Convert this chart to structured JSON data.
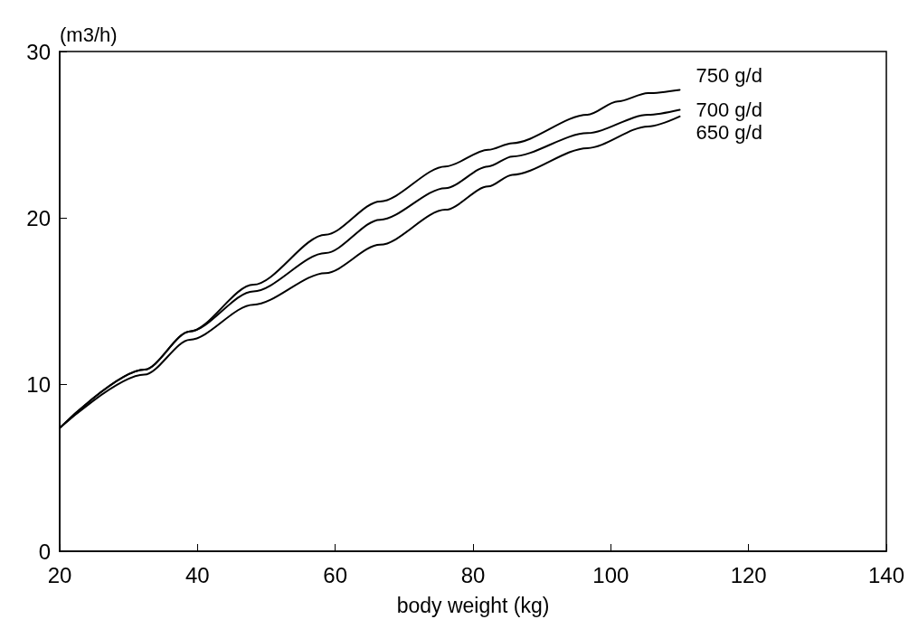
{
  "chart_data": {
    "type": "line",
    "xlabel": "body weight (kg)",
    "ylabel": "(m3/h)",
    "xlim": [
      20,
      140
    ],
    "xticks": [
      20,
      40,
      60,
      80,
      100,
      120,
      140
    ],
    "ylim": [
      0,
      30
    ],
    "yticks": [
      0,
      10,
      20,
      30
    ],
    "grid": false,
    "legend": false,
    "marker": "none",
    "line_style": "solid",
    "series": [
      {
        "name": "750 g/d",
        "color": "#000000",
        "x": [
          20,
          32.3,
          38.9,
          48.1,
          58.6,
          66.5,
          76,
          82.2,
          85.7,
          96.6,
          101,
          105.4,
          110
        ],
        "values": [
          7.4,
          10.9,
          13.2,
          16.0,
          19.0,
          21.0,
          23.1,
          24.1,
          24.5,
          26.2,
          27.0,
          27.5,
          27.7
        ]
      },
      {
        "name": "700 g/d",
        "color": "#000000",
        "x": [
          20,
          32.3,
          38.9,
          48.1,
          58.6,
          66.5,
          76,
          82.2,
          85.7,
          96.6,
          105.4,
          110
        ],
        "values": [
          7.4,
          10.9,
          13.2,
          15.6,
          17.9,
          19.9,
          21.8,
          23.1,
          23.7,
          25.1,
          26.2,
          26.5
        ]
      },
      {
        "name": "650 g/d",
        "color": "#000000",
        "x": [
          20,
          32.3,
          38.9,
          48.1,
          58.6,
          66.5,
          76,
          82.2,
          85.7,
          96.6,
          105.4,
          110
        ],
        "values": [
          7.4,
          10.6,
          12.7,
          14.8,
          16.7,
          18.4,
          20.5,
          21.9,
          22.6,
          24.2,
          25.5,
          26.1
        ]
      }
    ]
  }
}
